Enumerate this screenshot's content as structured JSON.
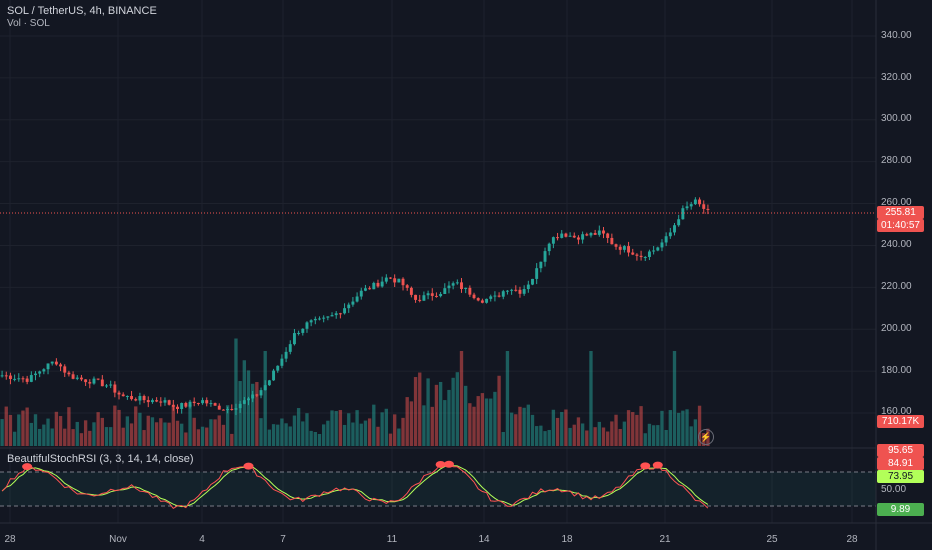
{
  "chart_header": {
    "symbol_line": "SOL / TetherUS, 4h, BINANCE",
    "volume_line": "Vol · SOL"
  },
  "price_axis": [
    "340.00",
    "320.00",
    "300.00",
    "280.00",
    "260.00",
    "240.00",
    "220.00",
    "200.00",
    "180.00",
    "160.00"
  ],
  "last_price": {
    "value": "255.81",
    "countdown": "01:40:57"
  },
  "volume_tag": "710.17K",
  "indicator": {
    "title": "BeautifulStochRSI (3, 3, 14, 14, close)",
    "axis": [
      "50.00"
    ],
    "tags": {
      "upper": "95.65",
      "k": "84.91",
      "d": "73.95",
      "lower": "9.89"
    }
  },
  "time_axis": [
    "28",
    "Nov",
    "4",
    "7",
    "11",
    "14",
    "18",
    "21",
    "25",
    "28"
  ],
  "colors": {
    "up": "#26a69a",
    "down": "#ef5350",
    "background": "#131722",
    "k_line": "#ff5252",
    "d_line": "#b2ff59"
  },
  "icons": {
    "replay": "lightning-icon"
  },
  "chart_data": {
    "type": "candlestick",
    "interval": "4h",
    "price_range": [
      150,
      345
    ],
    "approx_closes": [
      178,
      177,
      176,
      181,
      185,
      178,
      176,
      175,
      173,
      168,
      167,
      166,
      166,
      163,
      164,
      166,
      163,
      162,
      165,
      168,
      175,
      186,
      198,
      203,
      204,
      207,
      212,
      218,
      221,
      225,
      222,
      214,
      216,
      218,
      222,
      218,
      214,
      215,
      220,
      218,
      226,
      242,
      246,
      244,
      245,
      246,
      240,
      238,
      235,
      238,
      244,
      256,
      261,
      256
    ],
    "volume_range_k": [
      0,
      1500
    ],
    "stoch_rsi_range": [
      0,
      100
    ],
    "stoch_rsi_levels": [
      80,
      20
    ]
  }
}
